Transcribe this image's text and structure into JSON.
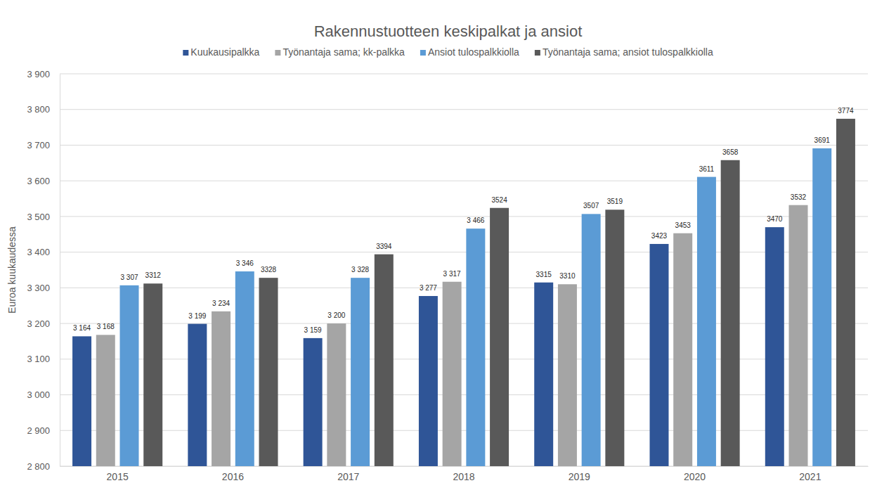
{
  "chart_data": {
    "type": "bar",
    "title": "Rakennustuotteen keskipalkat ja ansiot",
    "y_label": "Euroa kuukaudessa",
    "categories": [
      "2015",
      "2016",
      "2017",
      "2018",
      "2019",
      "2020",
      "2021"
    ],
    "series": [
      {
        "name": "Kuukausipalkka",
        "color": "#2f5597",
        "values": [
          3164,
          3199,
          3159,
          3277,
          3315,
          3423,
          3470
        ],
        "value_labels": [
          "3 164",
          "3 199",
          "3 159",
          "3 277",
          "3315",
          "3423",
          "3470"
        ]
      },
      {
        "name": "Työnantaja sama; kk-palkka",
        "color": "#a5a5a5",
        "values": [
          3168,
          3234,
          3200,
          3317,
          3310,
          3453,
          3532
        ],
        "value_labels": [
          "3 168",
          "3 234",
          "3 200",
          "3 317",
          "3310",
          "3453",
          "3532"
        ]
      },
      {
        "name": "Ansiot tulospalkkiolla",
        "color": "#5b9bd5",
        "values": [
          3307,
          3346,
          3328,
          3466,
          3507,
          3611,
          3691
        ],
        "value_labels": [
          "3 307",
          "3 346",
          "3 328",
          "3 466",
          "3507",
          "3611",
          "3691"
        ]
      },
      {
        "name": "Työnantaja sama; ansiot tulospalkkiolla",
        "color": "#595959",
        "values": [
          3312,
          3328,
          3394,
          3524,
          3519,
          3658,
          3774
        ]
      }
    ],
    "ylim": [
      2800,
      3900
    ],
    "yticks": [
      {
        "value": 2800,
        "label": "2 800"
      },
      {
        "value": 2900,
        "label": "2 900"
      },
      {
        "value": 3000,
        "label": "3 000"
      },
      {
        "value": 3100,
        "label": "3 100"
      },
      {
        "value": 3200,
        "label": "3 200"
      },
      {
        "value": 3300,
        "label": "3 300"
      },
      {
        "value": 3400,
        "label": "3 400"
      },
      {
        "value": 3500,
        "label": "3 500"
      },
      {
        "value": 3600,
        "label": "3 600"
      },
      {
        "value": 3700,
        "label": "3 700"
      },
      {
        "value": 3800,
        "label": "3 800"
      },
      {
        "value": 3900,
        "label": "3 900"
      }
    ],
    "grid": true,
    "legend": "top",
    "data_labels": true
  }
}
